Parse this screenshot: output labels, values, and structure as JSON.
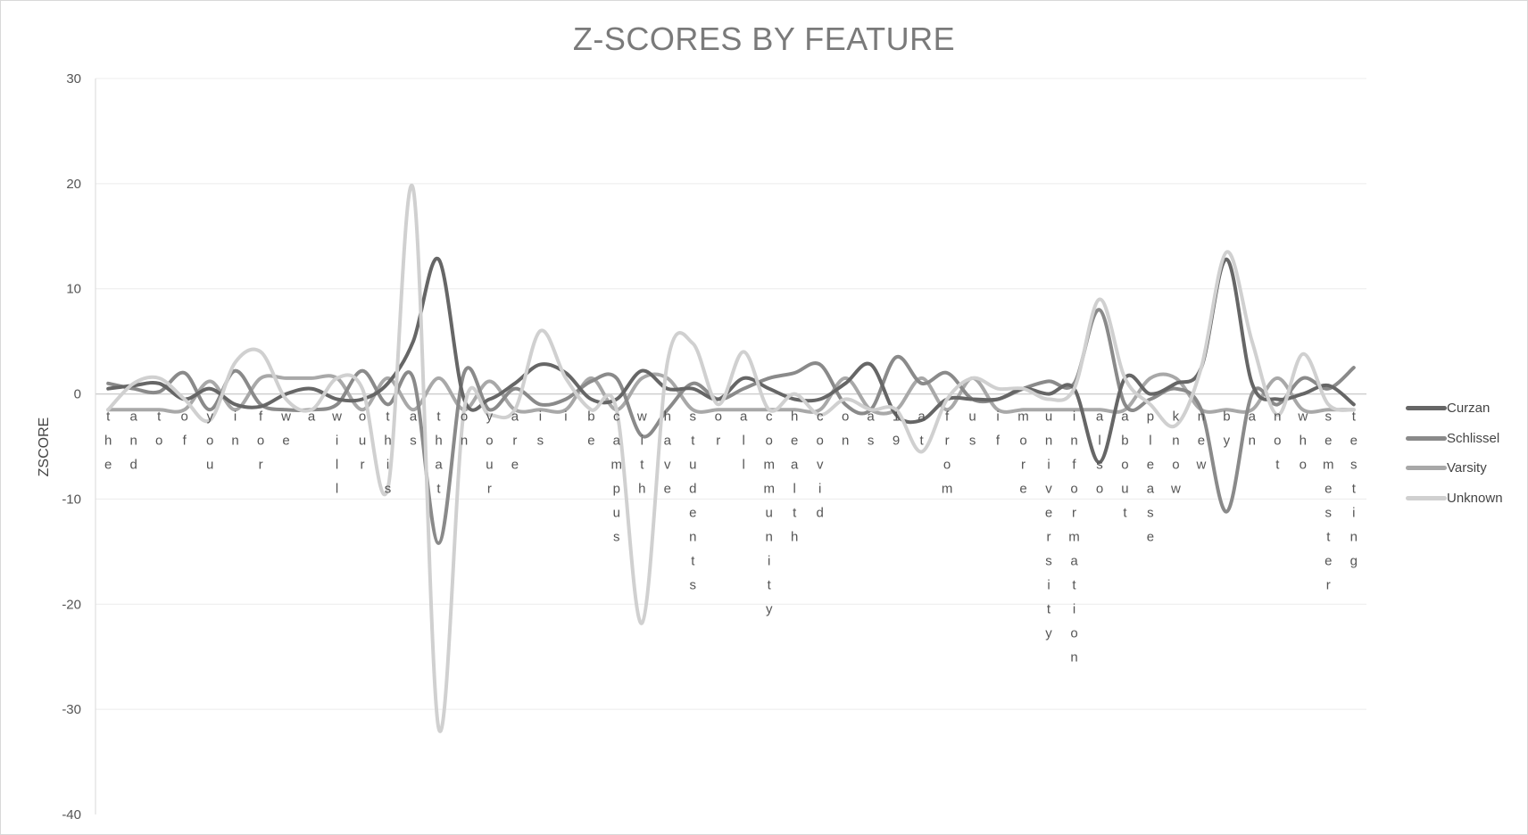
{
  "chart_data": {
    "type": "line",
    "title": "Z-SCORES BY FEATURE",
    "xlabel": "",
    "ylabel": "ZSCORE",
    "ylim": [
      -40,
      30
    ],
    "yticks": [
      30,
      20,
      10,
      0,
      -10,
      -20,
      -30,
      -40
    ],
    "grid": true,
    "legend": "right",
    "smooth": true,
    "categories": [
      "the",
      "and",
      "to",
      "of",
      "you",
      "in",
      "for",
      "we",
      "a",
      "will",
      "our",
      "this",
      "as",
      "that",
      "on",
      "your",
      "are",
      "is",
      "i",
      "be",
      "campus",
      "with",
      "have",
      "students",
      "or",
      "all",
      "community",
      "health",
      "covid",
      "on",
      "as",
      "19",
      "at",
      "from",
      "us",
      "if",
      "more",
      "university",
      "information",
      "also",
      "about",
      "please",
      "know",
      "new",
      "by",
      "an",
      "not",
      "who",
      "semester",
      "testing"
    ],
    "series": [
      {
        "name": "Curzan",
        "color": "#666666",
        "values": [
          0.5,
          0.8,
          1.0,
          -0.5,
          0.5,
          -1.0,
          -1.2,
          0.0,
          0.5,
          -0.5,
          -0.5,
          1.0,
          5.0,
          12.8,
          -0.5,
          -0.5,
          1.0,
          2.8,
          2.0,
          -0.5,
          -0.5,
          2.2,
          0.5,
          0.5,
          -0.5,
          1.5,
          0.5,
          -0.5,
          -0.5,
          1.0,
          2.8,
          -2.0,
          -2.5,
          -0.5,
          -0.5,
          -0.5,
          0.5,
          0.0,
          0.5,
          -6.5,
          1.5,
          0.0,
          1.0,
          2.5,
          12.8,
          1.0,
          -0.5,
          0.0,
          0.8,
          -1.0
        ]
      },
      {
        "name": "Schlissel",
        "color": "#8a8a8a",
        "values": [
          1.0,
          0.5,
          0.2,
          2.0,
          -1.5,
          2.2,
          -1.0,
          -1.5,
          -1.5,
          -1.0,
          2.2,
          -1.0,
          1.5,
          -14.2,
          2.0,
          -1.5,
          0.5,
          -1.0,
          -0.5,
          1.2,
          1.5,
          -4.0,
          -1.5,
          1.0,
          -0.5,
          0.5,
          1.5,
          2.0,
          2.8,
          -1.0,
          -1.5,
          3.5,
          1.0,
          2.0,
          -0.5,
          -0.5,
          0.5,
          1.2,
          1.0,
          8.0,
          -1.0,
          -0.5,
          0.5,
          -1.5,
          -11.2,
          0.0,
          -1.0,
          1.5,
          0.5,
          2.5
        ]
      },
      {
        "name": "Varsity",
        "color": "#a8a8a8",
        "values": [
          -1.5,
          -1.5,
          -1.5,
          -1.5,
          1.2,
          -1.5,
          1.5,
          1.5,
          1.5,
          1.5,
          -1.5,
          1.5,
          -1.5,
          1.5,
          -1.5,
          1.2,
          -1.5,
          -1.5,
          -1.5,
          1.5,
          -1.5,
          1.5,
          1.5,
          -1.5,
          -1.5,
          -1.5,
          -1.5,
          -1.5,
          -1.5,
          1.5,
          -1.5,
          -1.5,
          1.5,
          -1.5,
          1.5,
          -1.5,
          -1.5,
          -1.5,
          -1.5,
          -1.5,
          -1.5,
          1.5,
          1.5,
          -1.5,
          -1.5,
          -1.5,
          1.5,
          -1.5,
          -1.5,
          -1.5
        ]
      },
      {
        "name": "Unknown",
        "color": "#d0d0d0",
        "values": [
          -1.5,
          1.0,
          1.5,
          -0.5,
          -2.5,
          3.0,
          4.0,
          -0.5,
          -1.5,
          1.5,
          0.5,
          -9.0,
          19.5,
          -31.8,
          -1.5,
          -2.0,
          -1.5,
          6.0,
          1.5,
          -1.5,
          -1.5,
          -21.8,
          3.0,
          4.8,
          -1.0,
          4.0,
          -1.5,
          0.0,
          -2.0,
          -0.5,
          -1.5,
          -1.5,
          -5.5,
          -0.5,
          1.5,
          0.5,
          0.5,
          -0.5,
          0.5,
          9.0,
          1.5,
          -1.0,
          -3.0,
          2.5,
          13.5,
          5.0,
          -2.0,
          3.8,
          -1.0,
          -1.5
        ]
      }
    ]
  }
}
